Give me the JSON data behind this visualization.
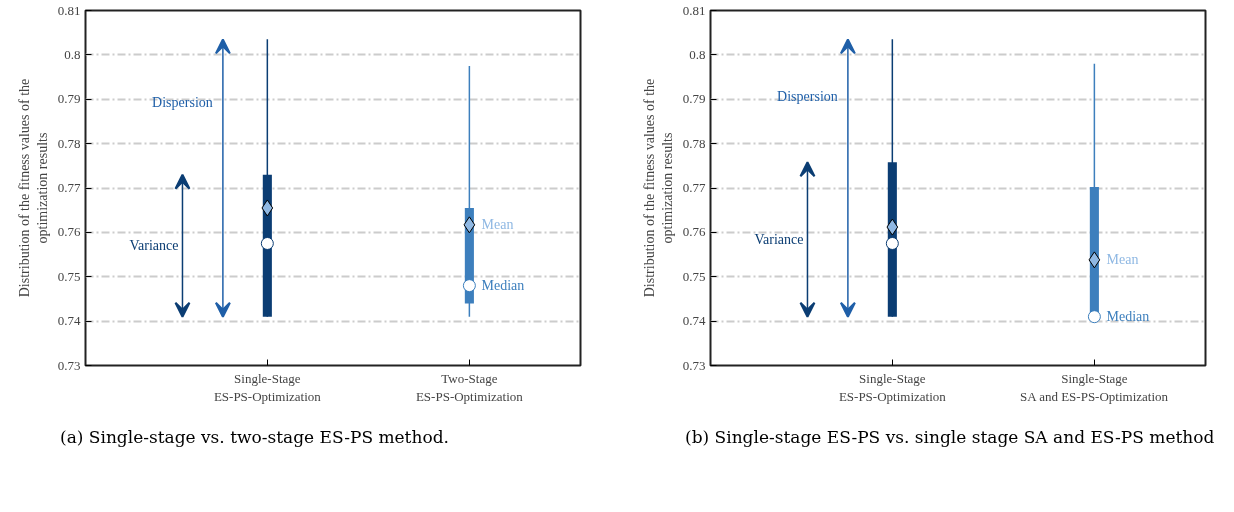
{
  "chart_data": [
    {
      "type": "box",
      "ylabel": "Distribution of the fitness values of the\noptimization results",
      "categories": [
        "Single-Stage\nES-PS-Optimization",
        "Two-Stage\nES-PS-Optimization"
      ],
      "colors": [
        "#0b3d73",
        "#3d7fbd"
      ],
      "boxes": [
        {
          "low": 0.741,
          "q1": 0.741,
          "median": 0.7575,
          "q3": 0.773,
          "high": 0.8035,
          "mean": 0.7655
        },
        {
          "low": 0.741,
          "q1": 0.744,
          "median": 0.748,
          "q3": 0.7655,
          "high": 0.7975,
          "mean": 0.7617
        }
      ],
      "ylim": [
        0.73,
        0.81
      ],
      "yticks": [
        0.73,
        0.74,
        0.75,
        0.76,
        0.77,
        0.78,
        0.79,
        0.8,
        0.81
      ],
      "grid": "y",
      "annotations": [
        "Dispersion",
        "Variance",
        {
          "text": "Mean",
          "x": "Two-Stage\nES-PS-Optimization",
          "y": 0.7617
        },
        {
          "text": "Median",
          "x": "Two-Stage\nES-PS-Optimization",
          "y": 0.748
        },
        "(a) Single-stage vs. two-stage ES-PS method."
      ]
    },
    {
      "type": "box",
      "ylabel": "Distribution of the fitness values of the\noptimization results",
      "categories": [
        "Single-Stage\nES-PS-Optimization",
        "Single-Stage\nSA and ES-PS-Optimization"
      ],
      "colors": [
        "#0b3d73",
        "#3d7fbd"
      ],
      "boxes": [
        {
          "low": 0.741,
          "q1": 0.741,
          "median": 0.7575,
          "q3": 0.7758,
          "high": 0.8035,
          "mean": 0.7612
        },
        {
          "low": 0.741,
          "q1": 0.741,
          "median": 0.741,
          "q3": 0.7702,
          "high": 0.798,
          "mean": 0.7538
        }
      ],
      "ylim": [
        0.73,
        0.81
      ],
      "yticks": [
        0.73,
        0.74,
        0.75,
        0.76,
        0.77,
        0.78,
        0.79,
        0.8,
        0.81
      ],
      "grid": "y",
      "annotations": [
        "Dispersion",
        "Variance",
        {
          "text": "Mean",
          "x": "Single-Stage\nSA and ES-PS-Optimization",
          "y": 0.7538
        },
        {
          "text": "Median",
          "x": "Single-Stage\nSA and ES-PS-Optimization",
          "y": 0.741
        },
        "(b) Single-stage ES-PS vs. single stage SA and ES-PS method"
      ]
    }
  ]
}
